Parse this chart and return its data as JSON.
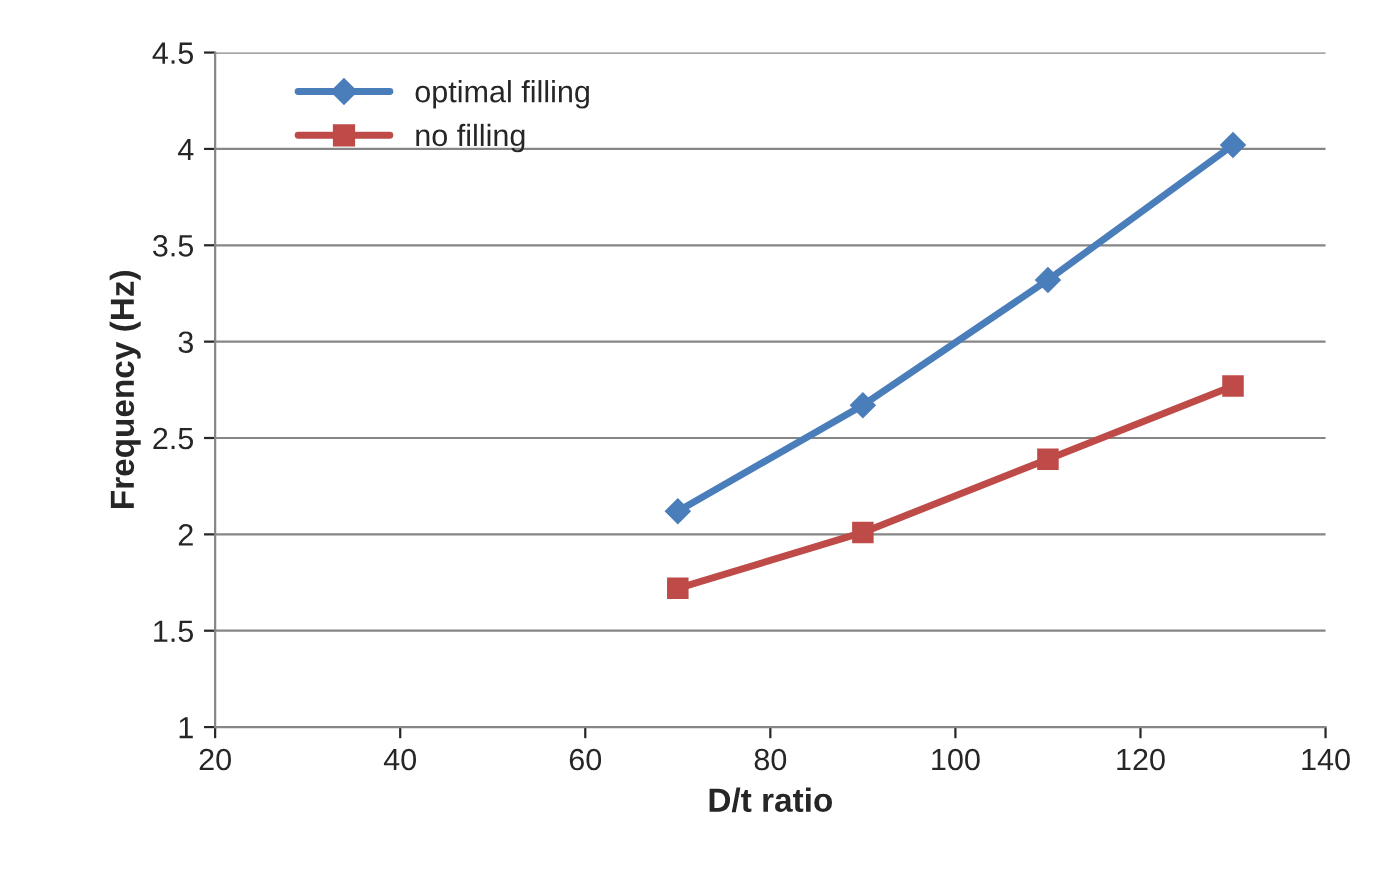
{
  "chart_data": {
    "type": "line",
    "xlabel": "D/t ratio",
    "ylabel": "Frequency (Hz)",
    "x": [
      70,
      90,
      110,
      130
    ],
    "series": [
      {
        "name": "optimal filling",
        "color": "#4a7ebb",
        "marker": "diamond",
        "values": [
          2.12,
          2.67,
          3.32,
          4.02
        ]
      },
      {
        "name": "no filling",
        "color": "#be4b48",
        "marker": "square",
        "values": [
          1.72,
          2.01,
          2.39,
          2.77
        ]
      }
    ],
    "xlim": [
      20,
      140
    ],
    "xticks": [
      20,
      40,
      60,
      80,
      100,
      120,
      140
    ],
    "ylim": [
      1,
      4.5
    ],
    "yticks": [
      1,
      1.5,
      2,
      2.5,
      3,
      3.5,
      4,
      4.5
    ],
    "grid": "y",
    "legend": "top left",
    "line_style": "solid"
  }
}
